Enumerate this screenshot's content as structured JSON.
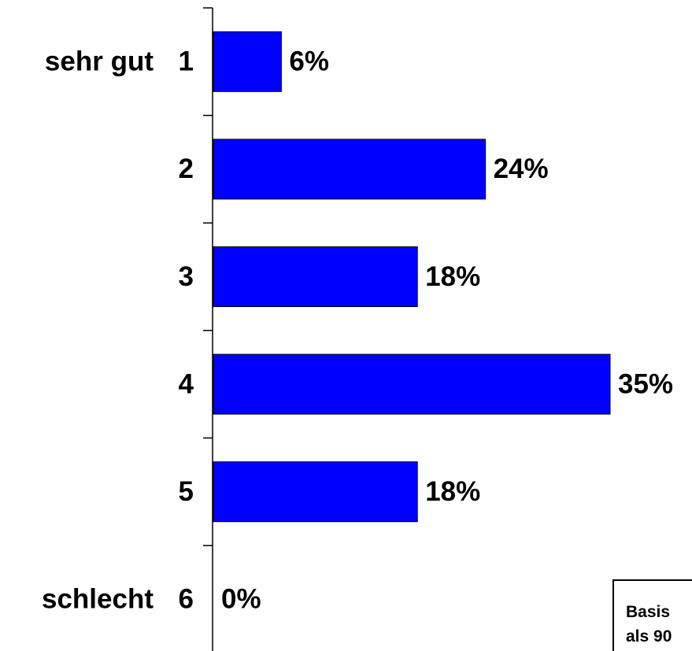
{
  "chart_data": {
    "type": "bar",
    "orientation": "horizontal",
    "categories": [
      "1",
      "2",
      "3",
      "4",
      "5",
      "6"
    ],
    "scale_labels": {
      "top": "sehr gut",
      "bottom": "schlecht"
    },
    "values": [
      6,
      24,
      18,
      35,
      18,
      0
    ],
    "value_labels": [
      "6%",
      "24%",
      "18%",
      "35%",
      "18%",
      "0%"
    ],
    "color": "#0000ff",
    "xlim": [
      0,
      35
    ],
    "note": [
      "Basis",
      "als 90"
    ]
  }
}
